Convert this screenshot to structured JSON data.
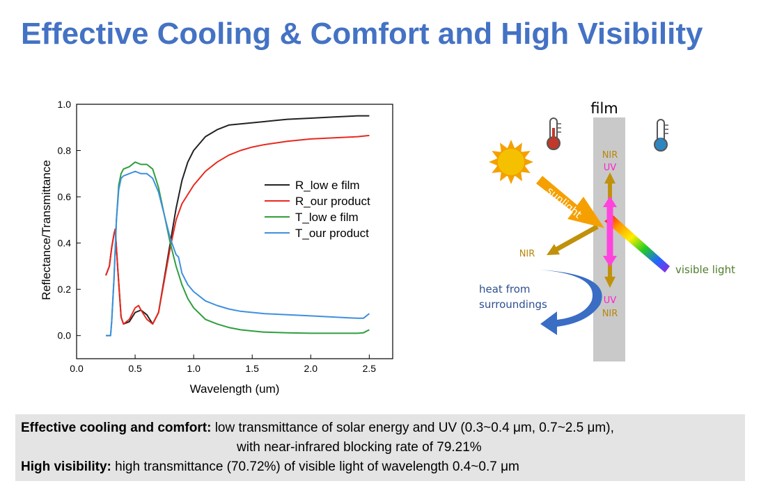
{
  "slide": {
    "title": "Effective Cooling & Comfort and High Visibility"
  },
  "chart_data": {
    "type": "line",
    "xlabel": "Wavelength (um)",
    "ylabel": "Reflectance/Transmittance",
    "xlim": [
      0,
      2.7
    ],
    "ylim": [
      -0.1,
      1.0
    ],
    "xticks": [
      0.0,
      0.5,
      1.0,
      1.5,
      2.0,
      2.5
    ],
    "xtick_labels": [
      "0.0",
      "0.5",
      "1.0",
      "1.5",
      "2.0",
      "2.5"
    ],
    "yticks": [
      0.0,
      0.2,
      0.4,
      0.6,
      0.8,
      1.0
    ],
    "ytick_labels": [
      "0.0",
      "0.2",
      "0.4",
      "0.6",
      "0.8",
      "1.0"
    ],
    "grid": false,
    "legend_position": "center-right",
    "series": [
      {
        "name": "R_low e film",
        "color": "#222222",
        "x": [
          0.25,
          0.28,
          0.3,
          0.32,
          0.33,
          0.35,
          0.38,
          0.4,
          0.45,
          0.5,
          0.55,
          0.6,
          0.65,
          0.7,
          0.75,
          0.8,
          0.85,
          0.9,
          0.95,
          1.0,
          1.1,
          1.2,
          1.3,
          1.4,
          1.5,
          1.6,
          1.7,
          1.8,
          2.0,
          2.2,
          2.4,
          2.5
        ],
        "y": [
          0.26,
          0.3,
          0.38,
          0.44,
          0.46,
          0.3,
          0.08,
          0.05,
          0.06,
          0.1,
          0.11,
          0.09,
          0.05,
          0.1,
          0.25,
          0.4,
          0.55,
          0.67,
          0.75,
          0.8,
          0.86,
          0.89,
          0.91,
          0.915,
          0.92,
          0.925,
          0.93,
          0.935,
          0.94,
          0.945,
          0.95,
          0.95
        ]
      },
      {
        "name": "R_our product",
        "color": "#e8281e",
        "x": [
          0.25,
          0.28,
          0.3,
          0.32,
          0.33,
          0.35,
          0.38,
          0.4,
          0.45,
          0.5,
          0.53,
          0.55,
          0.6,
          0.65,
          0.7,
          0.75,
          0.8,
          0.85,
          0.9,
          1.0,
          1.1,
          1.2,
          1.3,
          1.4,
          1.5,
          1.6,
          1.8,
          2.0,
          2.2,
          2.4,
          2.5
        ],
        "y": [
          0.26,
          0.3,
          0.38,
          0.44,
          0.46,
          0.3,
          0.08,
          0.05,
          0.07,
          0.12,
          0.13,
          0.11,
          0.07,
          0.05,
          0.1,
          0.24,
          0.38,
          0.5,
          0.57,
          0.65,
          0.71,
          0.75,
          0.78,
          0.8,
          0.815,
          0.825,
          0.84,
          0.85,
          0.855,
          0.86,
          0.865
        ]
      },
      {
        "name": "T_low e film",
        "color": "#2e9e3c",
        "x": [
          0.25,
          0.29,
          0.3,
          0.32,
          0.34,
          0.36,
          0.38,
          0.4,
          0.45,
          0.5,
          0.55,
          0.6,
          0.65,
          0.7,
          0.75,
          0.8,
          0.85,
          0.9,
          0.95,
          1.0,
          1.1,
          1.2,
          1.3,
          1.4,
          1.5,
          1.6,
          1.8,
          2.0,
          2.2,
          2.4,
          2.45,
          2.5
        ],
        "y": [
          0.0,
          0.0,
          0.06,
          0.25,
          0.5,
          0.65,
          0.7,
          0.72,
          0.73,
          0.75,
          0.74,
          0.74,
          0.72,
          0.64,
          0.52,
          0.4,
          0.3,
          0.22,
          0.16,
          0.12,
          0.07,
          0.05,
          0.035,
          0.025,
          0.02,
          0.015,
          0.012,
          0.01,
          0.01,
          0.01,
          0.012,
          0.025
        ]
      },
      {
        "name": "T_our product",
        "color": "#3d8fe0",
        "x": [
          0.25,
          0.29,
          0.3,
          0.32,
          0.34,
          0.36,
          0.38,
          0.4,
          0.45,
          0.5,
          0.55,
          0.6,
          0.65,
          0.7,
          0.75,
          0.8,
          0.85,
          0.87,
          0.9,
          0.95,
          1.0,
          1.1,
          1.2,
          1.3,
          1.4,
          1.6,
          1.8,
          2.0,
          2.2,
          2.4,
          2.45,
          2.5
        ],
        "y": [
          0.0,
          0.0,
          0.06,
          0.25,
          0.5,
          0.63,
          0.68,
          0.69,
          0.7,
          0.71,
          0.7,
          0.7,
          0.68,
          0.62,
          0.52,
          0.42,
          0.35,
          0.34,
          0.27,
          0.22,
          0.19,
          0.15,
          0.13,
          0.115,
          0.105,
          0.095,
          0.09,
          0.085,
          0.08,
          0.075,
          0.075,
          0.095
        ]
      }
    ]
  },
  "diagram": {
    "film_label": "film",
    "nir_top": "NIR",
    "uv_top": "UV",
    "sunlight_label": "sunlight",
    "nir_left": "NIR",
    "visible_label": "visible light",
    "heat_label_1": "heat from",
    "heat_label_2": "surroundings",
    "uv_bottom": "UV",
    "nir_bottom": "NIR",
    "colors": {
      "film": "#c9c9c9",
      "sun": "#f5b800",
      "sunlight_arrow": "#f5a000",
      "nir_arrow": "#c0910a",
      "uv_arrow": "#ff44dd",
      "heat_arrow": "#3a6dc4",
      "hot": "#c0392b",
      "cold": "#2e86c1",
      "visible_text": "#4e7d2a"
    },
    "icons": [
      "sun-icon",
      "hot-thermometer-icon",
      "cold-thermometer-icon"
    ]
  },
  "info": {
    "line1_bold": "Effective cooling and comfort:",
    "line1_text": " low transmittance of solar energy and UV (0.3~0.4 μm, 0.7~2.5 μm),",
    "line2_text": "with near-infrared blocking rate of 79.21%",
    "line3_bold": "High visibility:",
    "line3_text": " high transmittance (70.72%) of visible light of wavelength 0.4~0.7 μm"
  }
}
